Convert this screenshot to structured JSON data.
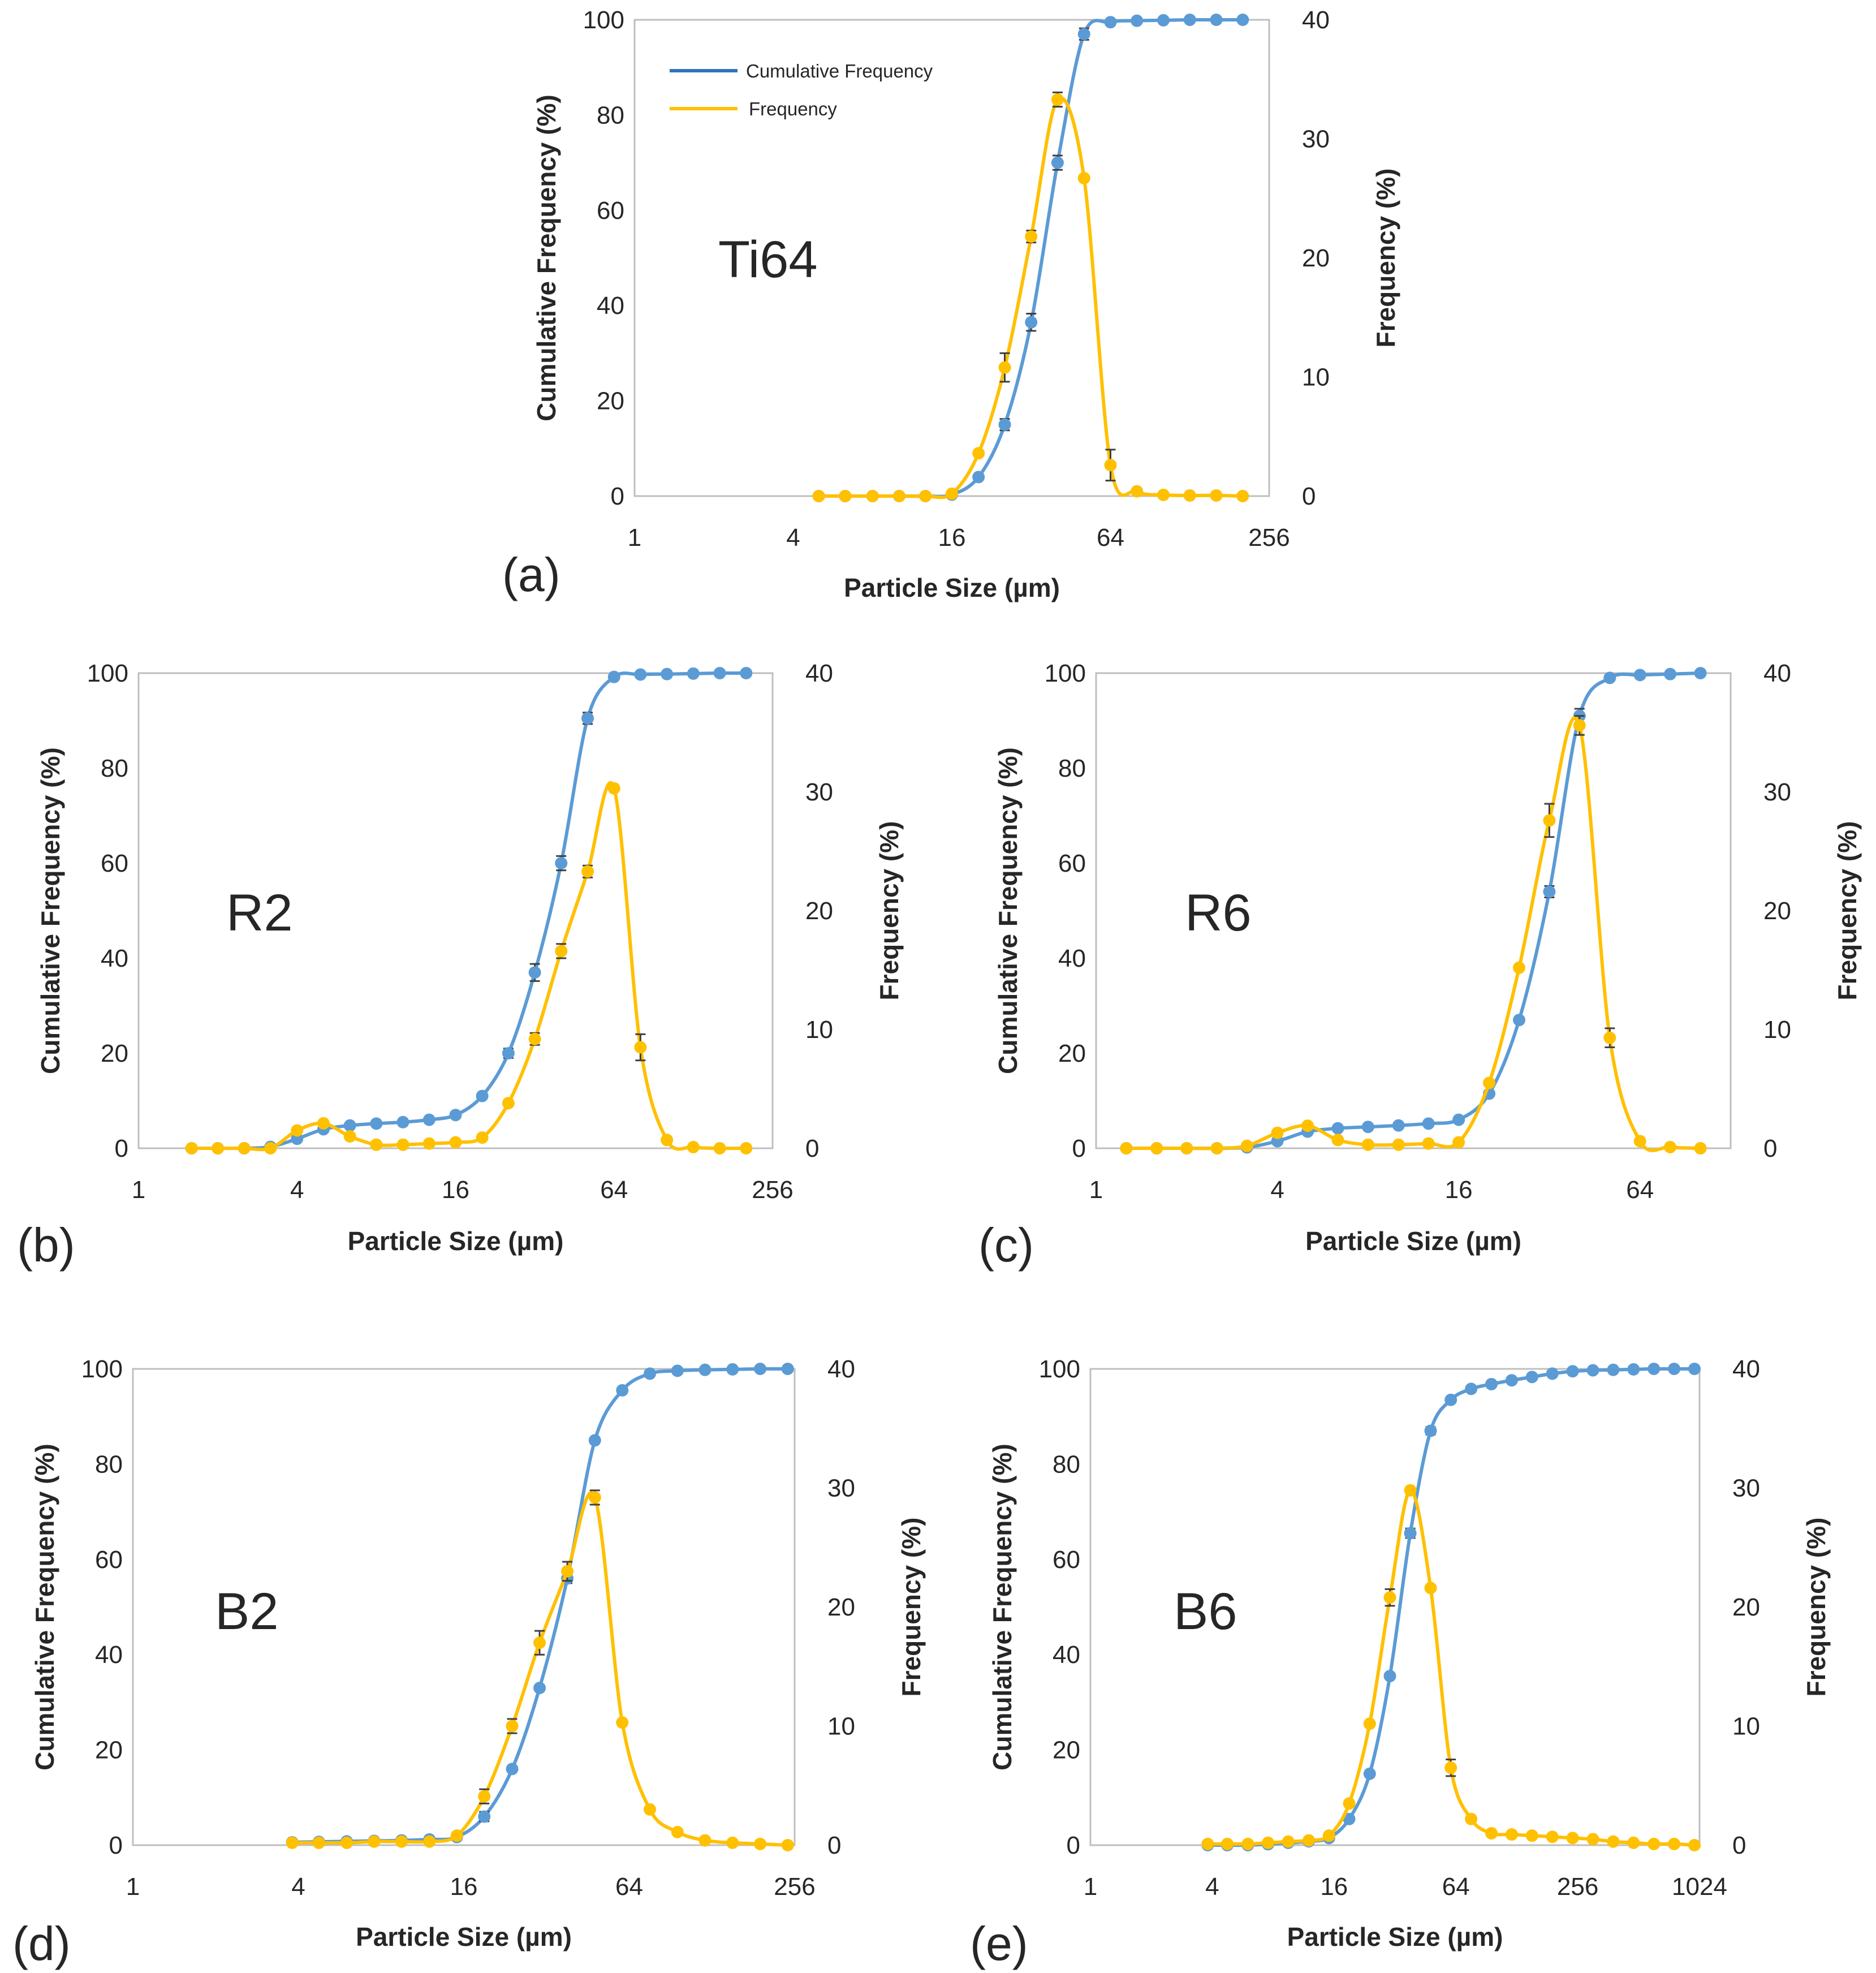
{
  "colors": {
    "cumulative": "#5b9bd5",
    "frequency": "#ffc000",
    "legend_cumulative": "#2e75b6"
  },
  "legend": {
    "cumulative": "Cumulative Frequency",
    "frequency": "Frequency"
  },
  "chart_data": [
    {
      "id": "a",
      "type": "line",
      "panel_label": "(a)",
      "sample_label": "Ti64",
      "xlabel": "Particle Size (µm)",
      "ylabel": "Cumulative Frequency (%)",
      "y2label": "Frequency (%)",
      "x_scale": "log2",
      "xlim": [
        1,
        256
      ],
      "ylim": [
        0,
        100
      ],
      "y2lim": [
        0,
        40
      ],
      "x_ticks": [
        "1",
        "4",
        "16",
        "64",
        "256"
      ],
      "y_ticks": [
        "0",
        "20",
        "40",
        "60",
        "80",
        "100"
      ],
      "y2_ticks": [
        "0",
        "10",
        "20",
        "30",
        "40"
      ],
      "legend_visible": true,
      "legend_position": "top-left",
      "x": [
        5.0,
        6.3,
        8.0,
        10.1,
        12.7,
        16.0,
        20.2,
        25.4,
        32.0,
        40.3,
        50.8,
        64.0,
        80.6,
        101.6,
        128.0,
        161.3,
        203.2
      ],
      "series": [
        {
          "name": "Cumulative Frequency",
          "axis": "left",
          "values": [
            0,
            0,
            0,
            0,
            0,
            0.3,
            4.0,
            15.0,
            36.5,
            70.0,
            97.0,
            99.5,
            99.8,
            99.9,
            100,
            100,
            100
          ],
          "errors": [
            0,
            0,
            0,
            0,
            0,
            0,
            0,
            1.2,
            1.8,
            1.5,
            1.2,
            0,
            0,
            0,
            0,
            0,
            0
          ]
        },
        {
          "name": "Frequency",
          "axis": "right",
          "values": [
            0,
            0,
            0,
            0,
            0,
            0.2,
            3.6,
            10.8,
            21.8,
            33.3,
            26.7,
            2.6,
            0.4,
            0.1,
            0.05,
            0.05,
            0
          ],
          "errors": [
            0,
            0,
            0,
            0,
            0,
            0,
            0,
            1.2,
            0.5,
            0.6,
            0,
            1.3,
            0,
            0,
            0,
            0,
            0
          ]
        }
      ]
    },
    {
      "id": "b",
      "type": "line",
      "panel_label": "(b)",
      "sample_label": "R2",
      "xlabel": "Particle Size (µm)",
      "ylabel": "Cumulative Frequency (%)",
      "y2label": "Frequency (%)",
      "x_scale": "log2",
      "xlim": [
        1,
        256
      ],
      "ylim": [
        0,
        100
      ],
      "y2lim": [
        0,
        40
      ],
      "x_ticks": [
        "1",
        "4",
        "16",
        "64",
        "256"
      ],
      "y_ticks": [
        "0",
        "20",
        "40",
        "60",
        "80",
        "100"
      ],
      "y2_ticks": [
        "0",
        "10",
        "20",
        "30",
        "40"
      ],
      "legend_visible": false,
      "x": [
        1.59,
        2.0,
        2.52,
        3.17,
        4.0,
        5.04,
        6.35,
        8.0,
        10.1,
        12.7,
        16.0,
        20.2,
        25.4,
        32.0,
        40.3,
        50.8,
        64.0,
        80.6,
        101.6,
        128.0,
        161.3,
        203.2
      ],
      "series": [
        {
          "name": "Cumulative Frequency",
          "axis": "left",
          "values": [
            0,
            0,
            0,
            0.3,
            2.0,
            4.0,
            4.8,
            5.2,
            5.5,
            6.0,
            7.0,
            11.0,
            20.0,
            37.0,
            60.0,
            90.5,
            99.2,
            99.7,
            99.8,
            99.9,
            100,
            100
          ],
          "errors": [
            0,
            0,
            0,
            0,
            0,
            0,
            0,
            0,
            0,
            0,
            0,
            0,
            1.0,
            1.8,
            1.5,
            1.2,
            0,
            0,
            0,
            0,
            0,
            0
          ]
        },
        {
          "name": "Frequency",
          "axis": "right",
          "values": [
            0,
            0,
            0,
            0,
            1.5,
            2.1,
            1.0,
            0.3,
            0.3,
            0.4,
            0.5,
            0.9,
            3.8,
            9.2,
            16.6,
            23.3,
            30.3,
            8.5,
            0.7,
            0.1,
            0,
            0
          ],
          "errors": [
            0,
            0,
            0,
            0,
            0,
            0,
            0,
            0,
            0,
            0,
            0,
            0,
            0,
            0.5,
            0.6,
            0.5,
            0.2,
            1.1,
            0,
            0,
            0,
            0
          ]
        }
      ]
    },
    {
      "id": "c",
      "type": "line",
      "panel_label": "(c)",
      "sample_label": "R6",
      "xlabel": "Particle Size (µm)",
      "ylabel": "Cumulative Frequency (%)",
      "y2label": "Frequency (%)",
      "x_scale": "log2",
      "xlim": [
        1,
        128
      ],
      "ylim": [
        0,
        100
      ],
      "y2lim": [
        0,
        40
      ],
      "x_ticks": [
        "1",
        "4",
        "16",
        "64"
      ],
      "y_ticks": [
        "0",
        "20",
        "40",
        "60",
        "80",
        "100"
      ],
      "y2_ticks": [
        "0",
        "10",
        "20",
        "30",
        "40"
      ],
      "legend_visible": false,
      "x": [
        1.26,
        1.59,
        2.0,
        2.52,
        3.17,
        4.0,
        5.04,
        6.35,
        8.0,
        10.1,
        12.7,
        16.0,
        20.2,
        25.4,
        32.0,
        40.3,
        50.8,
        64.0,
        80.6,
        101.6
      ],
      "series": [
        {
          "name": "Cumulative Frequency",
          "axis": "left",
          "values": [
            0,
            0,
            0,
            0,
            0.2,
            1.5,
            3.5,
            4.2,
            4.5,
            4.8,
            5.2,
            6.0,
            11.5,
            27.0,
            54.0,
            91.0,
            99.0,
            99.6,
            99.8,
            100
          ],
          "errors": [
            0,
            0,
            0,
            0,
            0,
            0,
            0,
            0,
            0,
            0,
            0,
            0,
            0,
            0,
            1.2,
            1.5,
            0.5,
            0,
            0,
            0
          ]
        },
        {
          "name": "Frequency",
          "axis": "right",
          "values": [
            0,
            0,
            0,
            0,
            0.2,
            1.3,
            1.9,
            0.7,
            0.3,
            0.3,
            0.4,
            0.5,
            5.5,
            15.2,
            27.6,
            35.6,
            9.3,
            0.6,
            0.1,
            0
          ],
          "errors": [
            0,
            0,
            0,
            0,
            0,
            0,
            0,
            0,
            0,
            0,
            0,
            0,
            0,
            0,
            1.4,
            0.8,
            0.8,
            0,
            0,
            0
          ]
        }
      ]
    },
    {
      "id": "d",
      "type": "line",
      "panel_label": "(d)",
      "sample_label": "B2",
      "xlabel": "Particle Size (µm)",
      "ylabel": "Cumulative Frequency (%)",
      "y2label": "Frequency (%)",
      "x_scale": "log2",
      "xlim": [
        1,
        256
      ],
      "ylim": [
        0,
        100
      ],
      "y2lim": [
        0,
        40
      ],
      "x_ticks": [
        "1",
        "4",
        "16",
        "64",
        "256"
      ],
      "y_ticks": [
        "0",
        "20",
        "40",
        "60",
        "80",
        "100"
      ],
      "y2_ticks": [
        "0",
        "10",
        "20",
        "30",
        "40"
      ],
      "legend_visible": false,
      "x": [
        3.8,
        4.75,
        6.0,
        7.55,
        9.5,
        12.0,
        15.1,
        19.0,
        24.0,
        30.2,
        38.1,
        48.0,
        60.4,
        76.1,
        95.9,
        120.8,
        152.2,
        191.8,
        241.6
      ],
      "series": [
        {
          "name": "Cumulative Frequency",
          "axis": "left",
          "values": [
            0.6,
            0.7,
            0.8,
            0.9,
            1.0,
            1.2,
            1.7,
            6.0,
            16.0,
            33.0,
            56.0,
            85.0,
            95.5,
            99.0,
            99.6,
            99.8,
            99.9,
            100,
            100
          ],
          "errors": [
            0,
            0,
            0,
            0,
            0,
            0,
            0,
            1.0,
            0,
            0,
            1.0,
            0,
            0,
            0,
            0,
            0,
            0,
            0,
            0
          ]
        },
        {
          "name": "Frequency",
          "axis": "right",
          "values": [
            0.2,
            0.2,
            0.2,
            0.3,
            0.3,
            0.3,
            0.8,
            4.1,
            10.0,
            17.0,
            23.0,
            29.2,
            10.3,
            3.0,
            1.1,
            0.4,
            0.2,
            0.1,
            0
          ],
          "errors": [
            0,
            0,
            0,
            0,
            0,
            0,
            0,
            0.6,
            0.6,
            1.0,
            0.8,
            0.6,
            0,
            0,
            0,
            0,
            0,
            0,
            0
          ]
        }
      ]
    },
    {
      "id": "e",
      "type": "line",
      "panel_label": "(e)",
      "sample_label": "B6",
      "xlabel": "Particle Size (µm)",
      "ylabel": "Cumulative Frequency (%)",
      "y2label": "Frequency (%)",
      "x_scale": "log2",
      "xlim": [
        1,
        1024
      ],
      "ylim": [
        0,
        100
      ],
      "y2lim": [
        0,
        40
      ],
      "x_ticks": [
        "1",
        "4",
        "16",
        "64",
        "256",
        "1024"
      ],
      "y_ticks": [
        "0",
        "20",
        "40",
        "60",
        "80",
        "100"
      ],
      "y2_ticks": [
        "0",
        "10",
        "20",
        "30",
        "40"
      ],
      "legend_visible": false,
      "x": [
        3.8,
        4.75,
        6.0,
        7.55,
        9.5,
        12.0,
        15.1,
        19.0,
        24.0,
        30.2,
        38.1,
        48.0,
        60.4,
        76.1,
        95.9,
        120.8,
        152.2,
        191.8,
        241.6,
        304.4,
        383.5,
        483.2,
        608.9,
        767.1,
        966.5
      ],
      "series": [
        {
          "name": "Cumulative Frequency",
          "axis": "left",
          "values": [
            0,
            0,
            0,
            0.2,
            0.5,
            0.8,
            1.5,
            5.5,
            15.0,
            35.5,
            65.5,
            87.0,
            93.5,
            95.8,
            96.8,
            97.6,
            98.3,
            99.0,
            99.5,
            99.7,
            99.8,
            99.9,
            100,
            100,
            100
          ],
          "errors": [
            0,
            0,
            0,
            0,
            0,
            0,
            0,
            0,
            0,
            0,
            1.0,
            0.8,
            0,
            0,
            0,
            0,
            0,
            0,
            0,
            0,
            0,
            0,
            0,
            0,
            0
          ]
        },
        {
          "name": "Frequency",
          "axis": "right",
          "values": [
            0.1,
            0.1,
            0.1,
            0.2,
            0.3,
            0.4,
            0.8,
            3.5,
            10.2,
            20.8,
            29.8,
            21.6,
            6.5,
            2.2,
            1.0,
            0.9,
            0.8,
            0.7,
            0.6,
            0.5,
            0.3,
            0.2,
            0.1,
            0.1,
            0
          ],
          "errors": [
            0,
            0,
            0,
            0,
            0,
            0,
            0,
            0,
            0,
            0.7,
            0,
            0,
            0.7,
            0,
            0,
            0,
            0,
            0,
            0,
            0,
            0,
            0,
            0,
            0,
            0
          ]
        }
      ]
    }
  ]
}
